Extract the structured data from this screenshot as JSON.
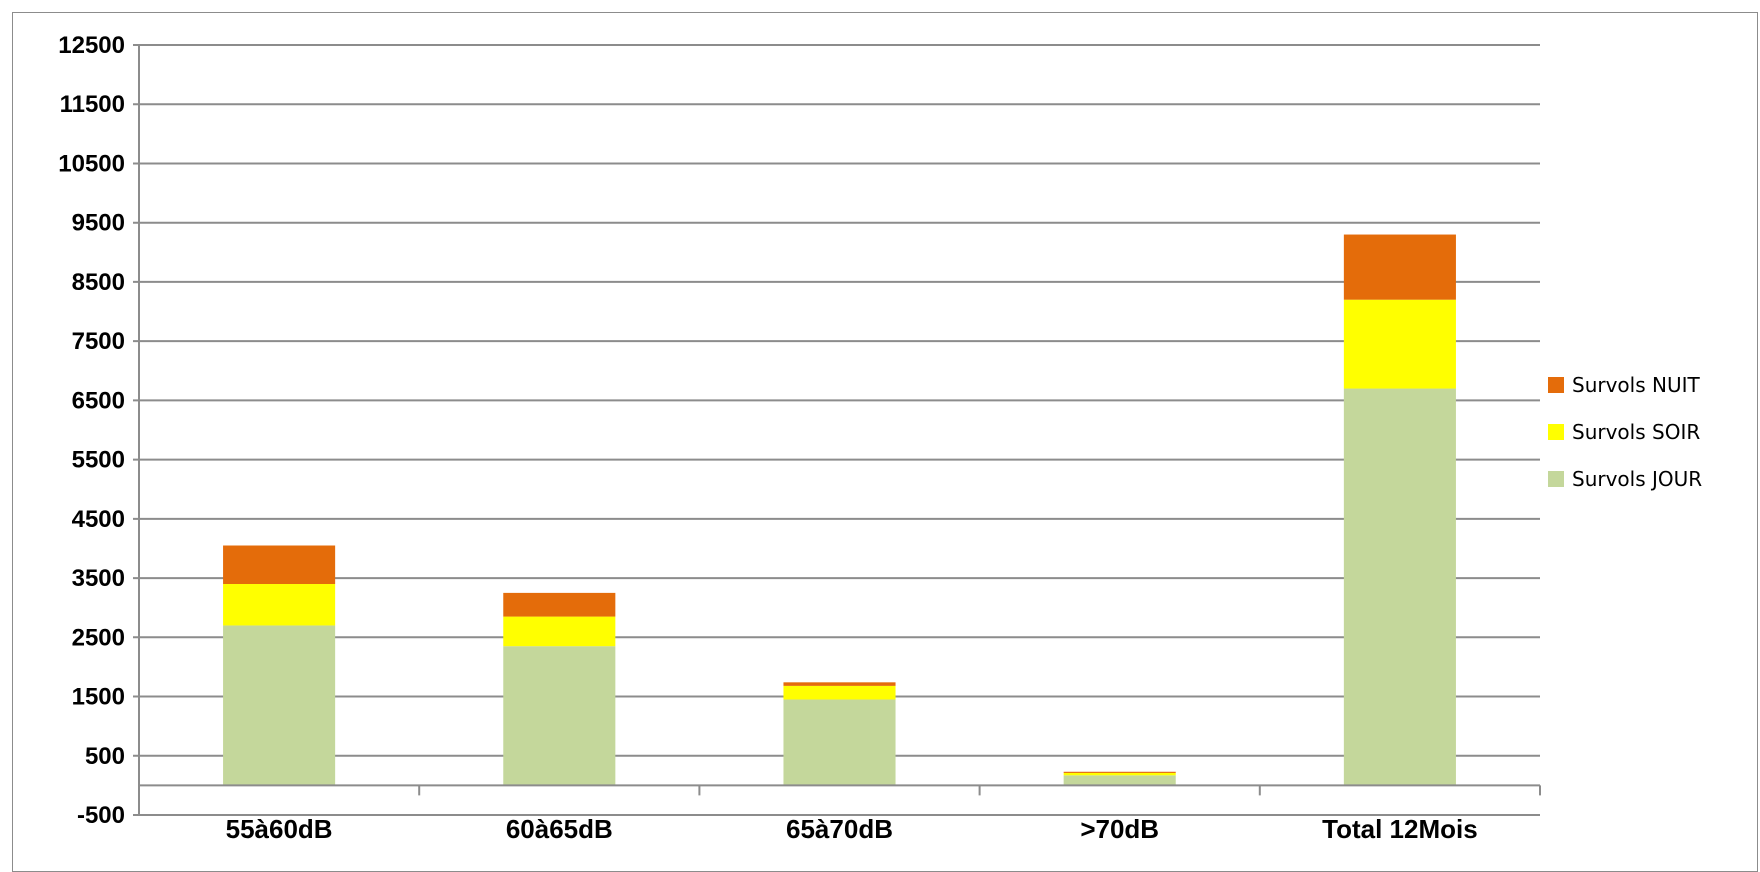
{
  "chart_data": {
    "type": "bar",
    "stacked": true,
    "categories": [
      "55à60dB",
      "60à65dB",
      "65à70dB",
      ">70dB",
      "Total 12Mois"
    ],
    "series": [
      {
        "name": "Survols JOUR",
        "color": "#c4d79b",
        "values": [
          2700,
          2350,
          1450,
          170,
          6700
        ]
      },
      {
        "name": "Survols SOIR",
        "color": "#ffff00",
        "values": [
          700,
          500,
          230,
          40,
          1500
        ]
      },
      {
        "name": "Survols NUIT",
        "color": "#e46c0a",
        "values": [
          650,
          400,
          60,
          20,
          1100
        ]
      }
    ],
    "ylim": [
      -500,
      12500
    ],
    "yticks": [
      -500,
      500,
      1500,
      2500,
      3500,
      4500,
      5500,
      6500,
      7500,
      8500,
      9500,
      10500,
      11500,
      12500
    ],
    "grid": true,
    "legend_position": "right",
    "legend_order": [
      "Survols NUIT",
      "Survols SOIR",
      "Survols JOUR"
    ],
    "title": "",
    "xlabel": "",
    "ylabel": ""
  }
}
